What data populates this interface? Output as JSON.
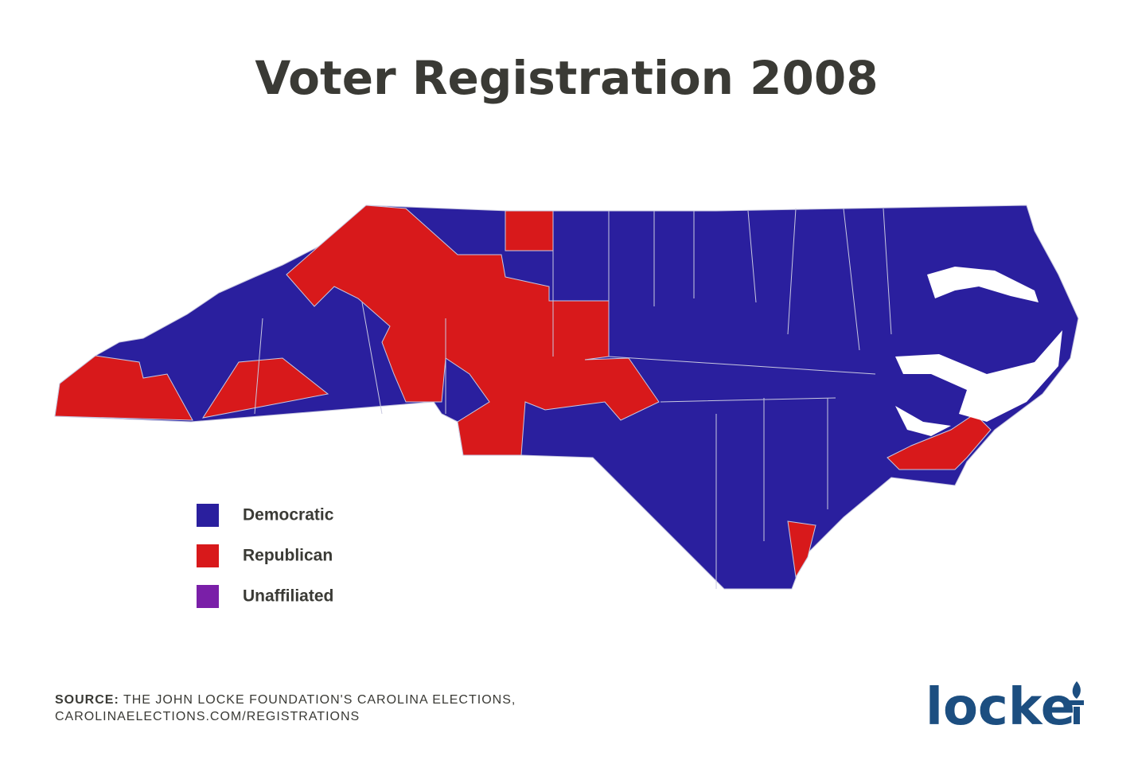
{
  "title": "Voter Registration 2008",
  "legend": {
    "items": [
      {
        "label": "Democratic",
        "color": "#2a1f9e"
      },
      {
        "label": "Republican",
        "color": "#d8191b"
      },
      {
        "label": "Unaffiliated",
        "color": "#7a1fa8"
      }
    ]
  },
  "source": {
    "label": "SOURCE:",
    "lines": [
      "THE JOHN LOCKE FOUNDATION'S CAROLINA ELECTIONS,",
      "CAROLINAELECTIONS.COM/REGISTRATIONS"
    ]
  },
  "logo": "locke"
}
